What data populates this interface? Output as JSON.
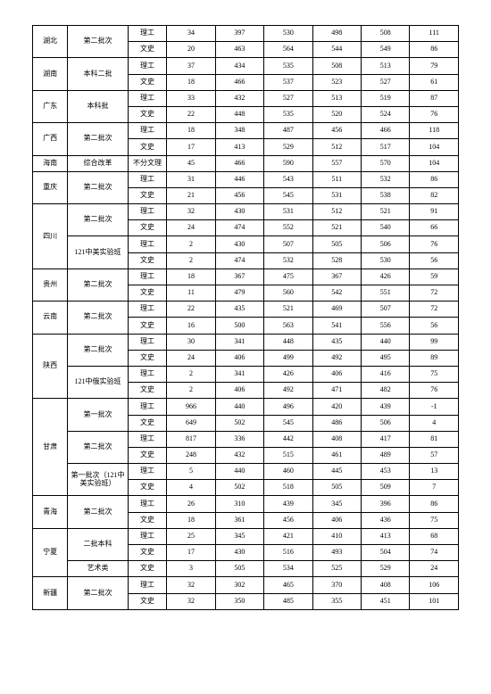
{
  "table": {
    "columns": [
      "province",
      "batch",
      "type",
      "n1",
      "n2",
      "n3",
      "n4",
      "n5",
      "n6"
    ],
    "col_classes": [
      "c-prov",
      "c-batch",
      "c-type",
      "c-n1",
      "c-n2",
      "c-n3",
      "c-n4",
      "c-n5",
      "c-n6"
    ],
    "rows": [
      {
        "province": "湖北",
        "prov_rowspan": 2,
        "batch": "第二批次",
        "batch_rowspan": 2,
        "type": "理工",
        "n1": "34",
        "n2": "397",
        "n3": "530",
        "n4": "498",
        "n5": "508",
        "n6": "111"
      },
      {
        "type": "文史",
        "n1": "20",
        "n2": "463",
        "n3": "564",
        "n4": "544",
        "n5": "549",
        "n6": "86"
      },
      {
        "province": "湖南",
        "prov_rowspan": 2,
        "batch": "本科二批",
        "batch_rowspan": 2,
        "type": "理工",
        "n1": "37",
        "n2": "434",
        "n3": "535",
        "n4": "508",
        "n5": "513",
        "n6": "79"
      },
      {
        "type": "文史",
        "n1": "18",
        "n2": "466",
        "n3": "537",
        "n4": "523",
        "n5": "527",
        "n6": "61"
      },
      {
        "province": "广东",
        "prov_rowspan": 2,
        "batch": "本科批",
        "batch_rowspan": 2,
        "type": "理工",
        "n1": "33",
        "n2": "432",
        "n3": "527",
        "n4": "513",
        "n5": "519",
        "n6": "87"
      },
      {
        "type": "文史",
        "n1": "22",
        "n2": "448",
        "n3": "535",
        "n4": "520",
        "n5": "524",
        "n6": "76"
      },
      {
        "province": "广西",
        "prov_rowspan": 2,
        "batch": "第二批次",
        "batch_rowspan": 2,
        "type": "理工",
        "n1": "18",
        "n2": "348",
        "n3": "487",
        "n4": "456",
        "n5": "466",
        "n6": "118"
      },
      {
        "type": "文史",
        "n1": "17",
        "n2": "413",
        "n3": "529",
        "n4": "512",
        "n5": "517",
        "n6": "104"
      },
      {
        "province": "海南",
        "prov_rowspan": 1,
        "batch": "综合改革",
        "batch_rowspan": 1,
        "type": "不分文理",
        "n1": "45",
        "n2": "466",
        "n3": "590",
        "n4": "557",
        "n5": "570",
        "n6": "104"
      },
      {
        "province": "重庆",
        "prov_rowspan": 2,
        "batch": "第二批次",
        "batch_rowspan": 2,
        "type": "理工",
        "n1": "31",
        "n2": "446",
        "n3": "543",
        "n4": "511",
        "n5": "532",
        "n6": "86"
      },
      {
        "type": "文史",
        "n1": "21",
        "n2": "456",
        "n3": "545",
        "n4": "531",
        "n5": "538",
        "n6": "82"
      },
      {
        "province": "四川",
        "prov_rowspan": 4,
        "batch": "第二批次",
        "batch_rowspan": 2,
        "type": "理工",
        "n1": "32",
        "n2": "430",
        "n3": "531",
        "n4": "512",
        "n5": "521",
        "n6": "91"
      },
      {
        "type": "文史",
        "n1": "24",
        "n2": "474",
        "n3": "552",
        "n4": "521",
        "n5": "540",
        "n6": "66"
      },
      {
        "batch": "121中美实验班",
        "batch_rowspan": 2,
        "type": "理工",
        "n1": "2",
        "n2": "430",
        "n3": "507",
        "n4": "505",
        "n5": "506",
        "n6": "76"
      },
      {
        "type": "文史",
        "n1": "2",
        "n2": "474",
        "n3": "532",
        "n4": "528",
        "n5": "530",
        "n6": "56"
      },
      {
        "province": "贵州",
        "prov_rowspan": 2,
        "batch": "第二批次",
        "batch_rowspan": 2,
        "type": "理工",
        "n1": "18",
        "n2": "367",
        "n3": "475",
        "n4": "367",
        "n5": "426",
        "n6": "59"
      },
      {
        "type": "文史",
        "n1": "11",
        "n2": "479",
        "n3": "560",
        "n4": "542",
        "n5": "551",
        "n6": "72"
      },
      {
        "province": "云南",
        "prov_rowspan": 2,
        "batch": "第二批次",
        "batch_rowspan": 2,
        "type": "理工",
        "n1": "22",
        "n2": "435",
        "n3": "521",
        "n4": "469",
        "n5": "507",
        "n6": "72"
      },
      {
        "type": "文史",
        "n1": "16",
        "n2": "500",
        "n3": "563",
        "n4": "541",
        "n5": "556",
        "n6": "56"
      },
      {
        "province": "陕西",
        "prov_rowspan": 4,
        "batch": "第二批次",
        "batch_rowspan": 2,
        "type": "理工",
        "n1": "30",
        "n2": "341",
        "n3": "448",
        "n4": "435",
        "n5": "440",
        "n6": "99"
      },
      {
        "type": "文史",
        "n1": "24",
        "n2": "406",
        "n3": "499",
        "n4": "492",
        "n5": "495",
        "n6": "89"
      },
      {
        "batch": "121中俄实验班",
        "batch_rowspan": 2,
        "type": "理工",
        "n1": "2",
        "n2": "341",
        "n3": "426",
        "n4": "406",
        "n5": "416",
        "n6": "75"
      },
      {
        "type": "文史",
        "n1": "2",
        "n2": "406",
        "n3": "492",
        "n4": "471",
        "n5": "482",
        "n6": "76"
      },
      {
        "province": "甘肃",
        "prov_rowspan": 6,
        "batch": "第一批次",
        "batch_rowspan": 2,
        "type": "理工",
        "n1": "966",
        "n2": "440",
        "n3": "496",
        "n4": "420",
        "n5": "439",
        "n6": "-1"
      },
      {
        "type": "文史",
        "n1": "649",
        "n2": "502",
        "n3": "545",
        "n4": "486",
        "n5": "506",
        "n6": "4"
      },
      {
        "batch": "第二批次",
        "batch_rowspan": 2,
        "type": "理工",
        "n1": "817",
        "n2": "336",
        "n3": "442",
        "n4": "408",
        "n5": "417",
        "n6": "81"
      },
      {
        "type": "文史",
        "n1": "248",
        "n2": "432",
        "n3": "515",
        "n4": "461",
        "n5": "489",
        "n6": "57"
      },
      {
        "batch": "第一批次（121中美实验班）",
        "batch_rowspan": 2,
        "type": "理工",
        "n1": "5",
        "n2": "440",
        "n3": "460",
        "n4": "445",
        "n5": "453",
        "n6": "13"
      },
      {
        "type": "文史",
        "n1": "4",
        "n2": "502",
        "n3": "518",
        "n4": "505",
        "n5": "509",
        "n6": "7"
      },
      {
        "province": "青海",
        "prov_rowspan": 2,
        "batch": "第二批次",
        "batch_rowspan": 2,
        "type": "理工",
        "n1": "26",
        "n2": "310",
        "n3": "439",
        "n4": "345",
        "n5": "396",
        "n6": "86"
      },
      {
        "type": "文史",
        "n1": "18",
        "n2": "361",
        "n3": "456",
        "n4": "406",
        "n5": "436",
        "n6": "75"
      },
      {
        "province": "宁夏",
        "prov_rowspan": 3,
        "batch": "二批本科",
        "batch_rowspan": 2,
        "type": "理工",
        "n1": "25",
        "n2": "345",
        "n3": "421",
        "n4": "410",
        "n5": "413",
        "n6": "68"
      },
      {
        "type": "文史",
        "n1": "17",
        "n2": "430",
        "n3": "516",
        "n4": "493",
        "n5": "504",
        "n6": "74"
      },
      {
        "batch": "艺术类",
        "batch_rowspan": 1,
        "type": "文史",
        "n1": "3",
        "n2": "505",
        "n3": "534",
        "n4": "525",
        "n5": "529",
        "n6": "24"
      },
      {
        "province": "新疆",
        "prov_rowspan": 2,
        "batch": "第二批次",
        "batch_rowspan": 2,
        "type": "理工",
        "n1": "32",
        "n2": "302",
        "n3": "465",
        "n4": "370",
        "n5": "408",
        "n6": "106"
      },
      {
        "type": "文史",
        "n1": "32",
        "n2": "350",
        "n3": "485",
        "n4": "355",
        "n5": "451",
        "n6": "101"
      }
    ]
  }
}
